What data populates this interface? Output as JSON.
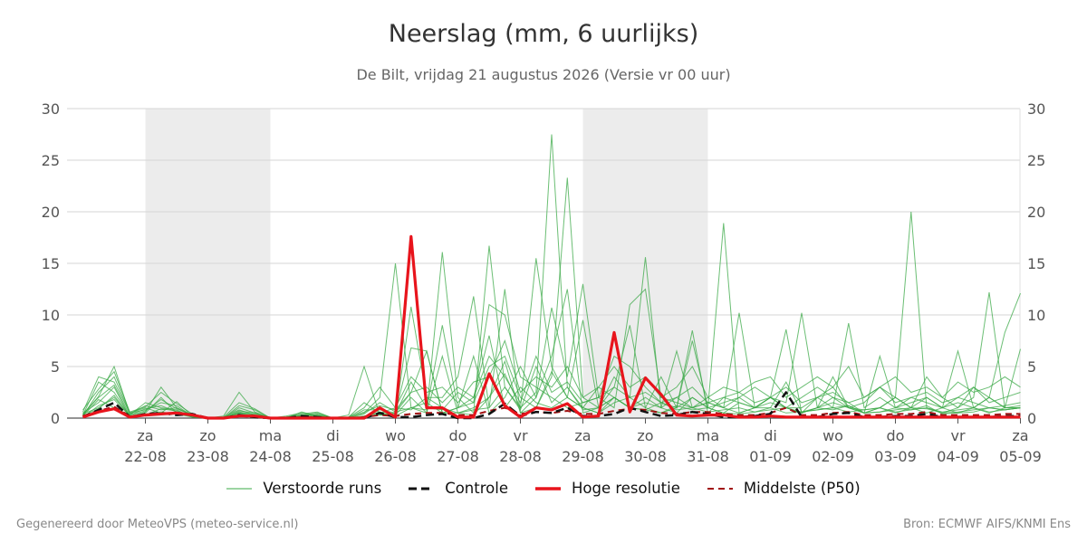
{
  "title": "Neerslag (mm, 6 uurlijks)",
  "subtitle": "De Bilt, vrijdag 21 augustus 2026 (Versie vr 00 uur)",
  "footer": {
    "left": "Gegenereerd door MeteoVPS (meteo-service.nl)",
    "right": "Bron: ECMWF AIFS/KNMI Ens"
  },
  "legend": [
    {
      "label": "Verstoorde runs",
      "color": "#3aa845",
      "style": "thin-line"
    },
    {
      "label": "Controle",
      "color": "#111111",
      "style": "dashed"
    },
    {
      "label": "Hoge resolutie",
      "color": "#e8141c",
      "style": "thick-line"
    },
    {
      "label": "Middelste (P50)",
      "color": "#a01010",
      "style": "dashed"
    }
  ],
  "chart_data": {
    "type": "line",
    "x_unit": "6-hour steps from vr 21-08 00 uur",
    "ylim": [
      0,
      30
    ],
    "y_ticks": [
      0,
      5,
      10,
      15,
      20,
      25,
      30
    ],
    "grid": true,
    "weekend_shading": true,
    "x_tick_labels": [
      {
        "day": "za",
        "date": "22-08"
      },
      {
        "day": "zo",
        "date": "23-08"
      },
      {
        "day": "ma",
        "date": "24-08"
      },
      {
        "day": "di",
        "date": "25-08"
      },
      {
        "day": "wo",
        "date": "26-08"
      },
      {
        "day": "do",
        "date": "27-08"
      },
      {
        "day": "vr",
        "date": "28-08"
      },
      {
        "day": "za",
        "date": "29-08"
      },
      {
        "day": "zo",
        "date": "30-08"
      },
      {
        "day": "ma",
        "date": "31-08"
      },
      {
        "day": "di",
        "date": "01-09"
      },
      {
        "day": "wo",
        "date": "02-09"
      },
      {
        "day": "do",
        "date": "03-09"
      },
      {
        "day": "vr",
        "date": "04-09"
      },
      {
        "day": "za",
        "date": "05-09"
      }
    ],
    "series": [
      {
        "name": "Hoge resolutie",
        "color": "#e8141c",
        "values": [
          0.1,
          0.6,
          0.9,
          0.1,
          0.3,
          0.4,
          0.5,
          0.3,
          0,
          0,
          0.2,
          0.2,
          0,
          0,
          0,
          0,
          0,
          0,
          0,
          1.0,
          0.1,
          17.6,
          1.0,
          1.0,
          0.1,
          0.1,
          4.3,
          1.2,
          0.1,
          1.0,
          0.8,
          1.4,
          0.1,
          0.2,
          8.3,
          0.6,
          3.9,
          2.3,
          0.3,
          0.2,
          0.3,
          0.3,
          0.1,
          0.1,
          0.2,
          0.1,
          0.1,
          0.1,
          0.1,
          0.1,
          0.1,
          0.1,
          0.1,
          0.1,
          0.1,
          0.1,
          0.1,
          0.1,
          0.1,
          0.1,
          0.1
        ]
      },
      {
        "name": "Controle",
        "color": "#111111",
        "values": [
          0.1,
          0.8,
          1.5,
          0.1,
          0.4,
          0.5,
          0.3,
          0.4,
          0,
          0,
          0.3,
          0.1,
          0,
          0,
          0.2,
          0.1,
          0,
          0,
          0,
          0.5,
          0.1,
          0.1,
          0.3,
          0.4,
          0,
          0,
          0.4,
          1.4,
          0.2,
          0.6,
          0.5,
          1.0,
          0.2,
          0.2,
          0.4,
          1.0,
          0.6,
          0.2,
          0.3,
          0.6,
          0.4,
          0.1,
          0.1,
          0.2,
          0.4,
          2.5,
          0.1,
          0.1,
          0.4,
          0.5,
          0.1,
          0.1,
          0.2,
          0.2,
          0.4,
          0.1,
          0.1,
          0.1,
          0.1,
          0.2,
          0.2
        ]
      },
      {
        "name": "Middelste (P50)",
        "color": "#a01010",
        "values": [
          0.2,
          0.7,
          1.1,
          0.2,
          0.3,
          0.4,
          0.4,
          0.3,
          0,
          0,
          0.2,
          0.1,
          0,
          0,
          0.1,
          0.1,
          0,
          0,
          0.1,
          0.3,
          0.2,
          0.4,
          0.5,
          0.5,
          0.3,
          0.3,
          0.7,
          1.0,
          0.4,
          0.6,
          0.5,
          0.7,
          0.4,
          0.4,
          0.7,
          0.9,
          0.8,
          0.5,
          0.4,
          0.6,
          0.6,
          0.4,
          0.3,
          0.3,
          0.5,
          1.0,
          0.3,
          0.3,
          0.5,
          0.6,
          0.3,
          0.3,
          0.4,
          0.4,
          0.6,
          0.3,
          0.3,
          0.3,
          0.3,
          0.4,
          0.4
        ]
      },
      {
        "name": "Verstoorde runs",
        "values": [
          0.3,
          2.1,
          5.0,
          0.4,
          1.2,
          0.8,
          1.0,
          0.2,
          0,
          0.1,
          0.8,
          0.3,
          0,
          0,
          0.2,
          0.1,
          0,
          0.1,
          1.5,
          0.5,
          0.2,
          10.8,
          2.0,
          1.0,
          0.5,
          0.3,
          2.0,
          4.3,
          1.0,
          2.5,
          27.5,
          3.0,
          1.0,
          0.5,
          2.0,
          1.0,
          0.8,
          0.5,
          1.2,
          0.8,
          1.0,
          0.5,
          0.4,
          0.6,
          1.0,
          3.5,
          0.6,
          0.8,
          1.0,
          1.2,
          0.5,
          0.6,
          1.0,
          0.8,
          1.2,
          0.4,
          0.5,
          0.6,
          1.0,
          0.8,
          1.0
        ]
      },
      {
        "name": "Verstoorde runs",
        "values": [
          0.5,
          1.5,
          3.0,
          0.1,
          0.5,
          2.0,
          0.5,
          0.3,
          0,
          0,
          0.5,
          0.4,
          0,
          0.2,
          0.5,
          0.2,
          0,
          0.3,
          5.0,
          0.3,
          0.5,
          2.5,
          6.5,
          0.5,
          1.0,
          1.5,
          5.0,
          6.0,
          2.0,
          1.0,
          4.0,
          23.3,
          2.0,
          1.0,
          4.0,
          2.0,
          15.6,
          1.0,
          0.5,
          2.0,
          1.0,
          18.9,
          0.5,
          1.0,
          2.0,
          1.0,
          0.5,
          2.0,
          3.0,
          1.0,
          0.8,
          1.0,
          0.5,
          1.0,
          2.0,
          1.0,
          0.5,
          1.0,
          2.0,
          1.0,
          1.2
        ]
      },
      {
        "name": "Verstoorde runs",
        "values": [
          0.2,
          2.5,
          4.0,
          0.5,
          0.8,
          1.5,
          1.2,
          0.2,
          0,
          0,
          1.0,
          0.5,
          0,
          0,
          0.1,
          0.3,
          0,
          0,
          0.5,
          2.0,
          15.0,
          1.0,
          0.5,
          16.1,
          2.0,
          0.5,
          16.7,
          3.0,
          1.0,
          15.5,
          5.0,
          2.0,
          1.0,
          3.0,
          2.0,
          1.0,
          1.5,
          1.0,
          2.0,
          1.0,
          1.5,
          1.0,
          10.2,
          1.0,
          1.0,
          0.5,
          0.6,
          1.0,
          0.8,
          1.2,
          0.5,
          0.6,
          0.8,
          1.0,
          0.9,
          0.5,
          0.6,
          0.8,
          1.0,
          0.8,
          1.0
        ]
      },
      {
        "name": "Verstoorde runs",
        "values": [
          0.4,
          1.0,
          2.0,
          0.3,
          1.5,
          1.0,
          0.8,
          0.1,
          0,
          0.2,
          2.5,
          0.6,
          0,
          0,
          0.3,
          0.5,
          0,
          0,
          0.2,
          0.5,
          1.0,
          0.8,
          2.0,
          2.0,
          4.0,
          11.8,
          1.0,
          12.5,
          0.5,
          2.0,
          6.0,
          12.5,
          0.5,
          1.0,
          3.0,
          9.0,
          1.0,
          4.0,
          1.0,
          8.5,
          0.5,
          2.0,
          1.5,
          1.0,
          2.0,
          8.6,
          0.5,
          1.0,
          2.0,
          1.5,
          0.5,
          6.0,
          1.0,
          2.0,
          1.5,
          1.0,
          2.0,
          1.5,
          1.0,
          1.2,
          1.5
        ]
      },
      {
        "name": "Verstoorde runs",
        "values": [
          0.3,
          3.5,
          2.5,
          0.2,
          0.6,
          3.0,
          1.0,
          0.3,
          0,
          0,
          0.5,
          0.2,
          0,
          0,
          0.6,
          0.2,
          0,
          0,
          0.8,
          0.8,
          0.5,
          6.8,
          6.5,
          0.5,
          1.0,
          6.0,
          0.5,
          2.0,
          5.0,
          2.0,
          10.7,
          4.0,
          13.0,
          2.0,
          1.0,
          11.0,
          12.5,
          2.0,
          1.5,
          1.0,
          2.0,
          1.0,
          0.5,
          1.0,
          2.0,
          1.5,
          10.2,
          1.0,
          1.5,
          1.0,
          0.5,
          1.0,
          2.0,
          20.0,
          1.0,
          0.5,
          1.0,
          2.0,
          12.2,
          1.0,
          1.0
        ]
      },
      {
        "name": "Verstoorde runs",
        "values": [
          0.6,
          4.0,
          3.5,
          0.5,
          1.0,
          0.5,
          1.6,
          0.2,
          0,
          0,
          1.2,
          0.8,
          0,
          0,
          0.2,
          0.4,
          0,
          0,
          0.4,
          1.5,
          0.6,
          1.0,
          0.8,
          9.0,
          1.0,
          2.0,
          8.0,
          1.0,
          3.0,
          1.5,
          1.0,
          2.0,
          9.5,
          1.0,
          2.0,
          1.0,
          2.0,
          1.0,
          6.5,
          1.0,
          1.5,
          1.0,
          2.0,
          1.0,
          1.5,
          1.0,
          1.0,
          2.0,
          1.0,
          9.2,
          1.0,
          2.0,
          1.0,
          1.5,
          2.0,
          1.0,
          6.5,
          1.0,
          2.0,
          8.3,
          12.1
        ]
      },
      {
        "name": "Verstoorde runs",
        "values": [
          0.2,
          1.8,
          1.0,
          0.3,
          0.9,
          1.2,
          0.6,
          0.1,
          0,
          0,
          0.6,
          0.3,
          0,
          0,
          0.1,
          0.2,
          0,
          0,
          0.2,
          0.6,
          0.4,
          3.5,
          1.0,
          0.8,
          2.5,
          1.5,
          11.0,
          10.0,
          4.0,
          3.0,
          2.0,
          1.0,
          1.5,
          2.0,
          6.0,
          5.0,
          3.0,
          1.5,
          1.0,
          7.5,
          1.0,
          1.5,
          2.0,
          3.0,
          2.0,
          1.0,
          2.0,
          3.0,
          2.0,
          1.0,
          1.5,
          3.0,
          2.0,
          1.0,
          4.0,
          2.0,
          1.0,
          3.0,
          2.0,
          1.0,
          6.7
        ]
      },
      {
        "name": "Verstoorde runs",
        "values": [
          0.1,
          1.2,
          1.8,
          0.2,
          0.4,
          0.6,
          0.4,
          0.1,
          0,
          0,
          0.2,
          0.1,
          0,
          0,
          0.2,
          0.1,
          0,
          0,
          0.1,
          0.4,
          0.3,
          2.0,
          0.5,
          6.0,
          0.5,
          1.0,
          2.0,
          5.5,
          0.5,
          1.0,
          4.5,
          2.0,
          1.0,
          0.5,
          1.5,
          2.0,
          1.0,
          0.5,
          1.0,
          2.0,
          1.0,
          0.5,
          1.5,
          1.0,
          2.0,
          1.0,
          0.5,
          1.0,
          4.0,
          1.0,
          0.5,
          1.0,
          2.0,
          1.0,
          0.5,
          1.0,
          1.5,
          1.0,
          0.5,
          1.0,
          1.0
        ]
      },
      {
        "name": "Verstoorde runs",
        "values": [
          0.8,
          2.8,
          4.5,
          0.6,
          1.1,
          2.5,
          1.4,
          0.4,
          0,
          0.1,
          1.5,
          0.9,
          0,
          0.1,
          0.4,
          0.6,
          0,
          0.1,
          1.0,
          3.0,
          1.0,
          4.0,
          2.5,
          3.0,
          1.5,
          3.5,
          4.0,
          7.5,
          2.5,
          4.0,
          3.0,
          5.0,
          2.0,
          3.0,
          5.0,
          3.0,
          4.0,
          2.0,
          3.0,
          5.0,
          2.0,
          3.0,
          2.5,
          3.5,
          4.0,
          2.0,
          3.0,
          4.0,
          3.0,
          5.0,
          2.0,
          3.0,
          4.0,
          2.5,
          3.0,
          2.0,
          3.5,
          2.5,
          3.0,
          4.0,
          3.0
        ]
      },
      {
        "name": "Verstoorde runs",
        "values": [
          0.2,
          0.9,
          2.2,
          0.1,
          0.3,
          0.9,
          0.7,
          0.2,
          0,
          0,
          0.4,
          0.2,
          0,
          0,
          0.1,
          0.1,
          0,
          0,
          0.1,
          0.3,
          0.2,
          1.0,
          1.5,
          0.5,
          0.5,
          0.8,
          1.0,
          3.0,
          0.8,
          5.0,
          1.5,
          3.0,
          0.8,
          1.0,
          2.0,
          1.0,
          0.8,
          1.5,
          0.8,
          1.0,
          0.6,
          0.8,
          1.0,
          0.6,
          0.8,
          1.0,
          0.6,
          0.8,
          1.0,
          0.6,
          0.8,
          1.0,
          0.6,
          0.8,
          1.0,
          0.6,
          0.8,
          1.0,
          0.6,
          0.8,
          1.0
        ]
      },
      {
        "name": "Verstoorde runs",
        "values": [
          0.4,
          2.0,
          3.2,
          0.3,
          0.7,
          1.8,
          0.9,
          0.3,
          0,
          0,
          0.7,
          0.5,
          0,
          0.1,
          0.3,
          0.3,
          0,
          0.1,
          0.6,
          1.2,
          0.8,
          2.5,
          3.0,
          1.5,
          3.0,
          2.0,
          6.0,
          4.0,
          1.5,
          6.0,
          2.5,
          3.5,
          1.5,
          2.0,
          3.0,
          2.0,
          2.5,
          1.5,
          2.0,
          3.0,
          1.5,
          2.0,
          2.5,
          1.5,
          2.0,
          3.0,
          1.5,
          2.0,
          2.5,
          1.5,
          2.0,
          3.0,
          1.5,
          2.0,
          2.5,
          1.5,
          2.0,
          3.0,
          1.5,
          2.0,
          2.5
        ]
      }
    ]
  }
}
